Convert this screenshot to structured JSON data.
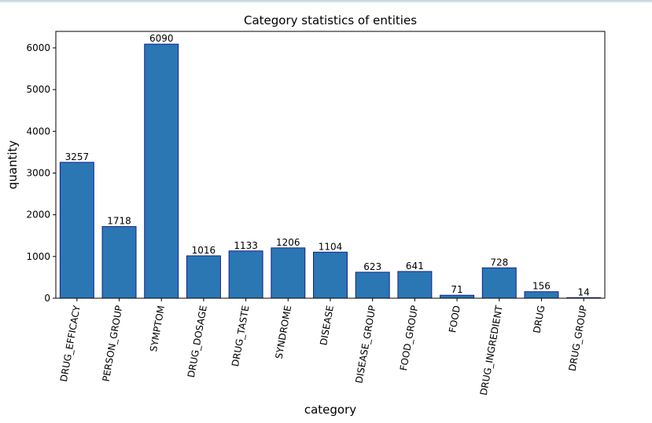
{
  "chart_data": {
    "type": "bar",
    "title": "Category statistics of entities",
    "xlabel": "category",
    "ylabel": "quantity",
    "categories": [
      "DRUG_EFFICACY",
      "PERSON_GROUP",
      "SYMPTOM",
      "DRUG_DOSAGE",
      "DRUG_TASTE",
      "SYNDROME",
      "DISEASE",
      "DISEASE_GROUP",
      "FOOD_GROUP",
      "FOOD",
      "DRUG_INGREDIENT",
      "DRUG",
      "DRUG_GROUP"
    ],
    "values": [
      3257,
      1718,
      6090,
      1016,
      1133,
      1206,
      1104,
      623,
      641,
      71,
      728,
      156,
      14
    ],
    "yticks": [
      0,
      1000,
      2000,
      3000,
      4000,
      5000,
      6000
    ],
    "ylim": [
      0,
      6395
    ],
    "grid": false,
    "legend": "none",
    "bar_color": "#2a77b4",
    "bar_edge_color": "#16208e",
    "x_tick_rotation": "-80deg"
  }
}
